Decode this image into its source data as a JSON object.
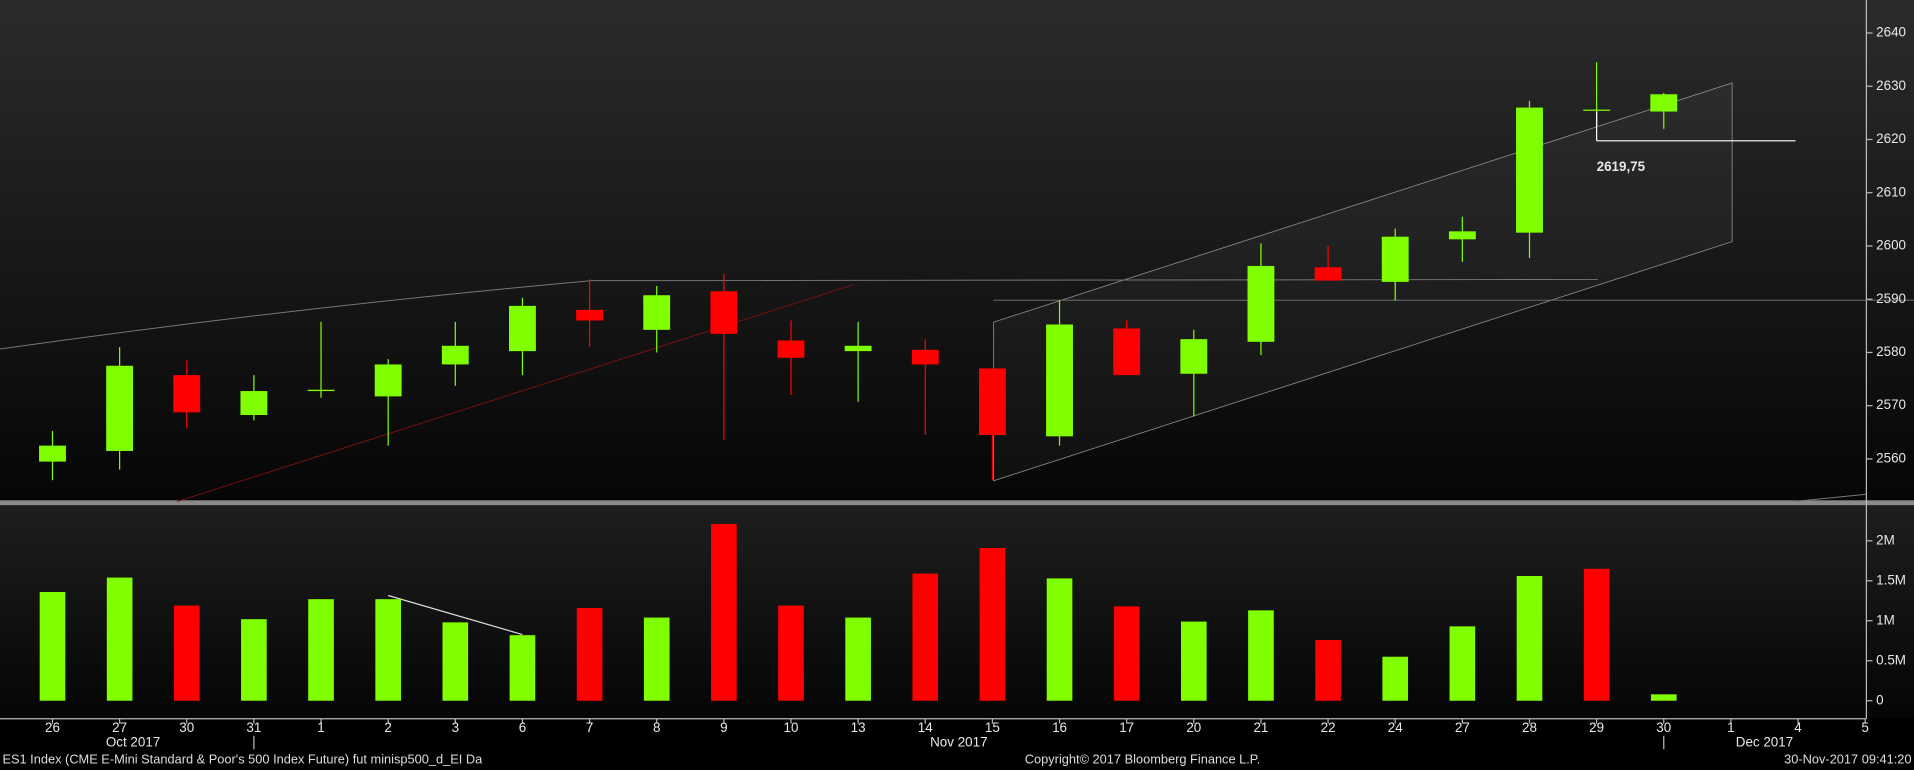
{
  "chart_data": [
    {
      "type": "candlestick",
      "categories": [
        "26",
        "27",
        "30",
        "31",
        "1",
        "2",
        "3",
        "6",
        "7",
        "8",
        "9",
        "10",
        "13",
        "14",
        "15",
        "16",
        "17",
        "20",
        "21",
        "22",
        "24",
        "27",
        "28",
        "29",
        "30",
        "1",
        "4",
        "5"
      ],
      "x_groups": [
        "Oct 2017",
        "Nov 2017",
        "Dec 2017"
      ],
      "open": [
        2559.5,
        2561.5,
        2575.75,
        2568.25,
        2572.75,
        2571.75,
        2577.75,
        2580.25,
        2588,
        2584.25,
        2591.5,
        2582.25,
        2580.25,
        2580.5,
        2577,
        2564.25,
        2584.5,
        2576,
        2582,
        2596,
        2593.25,
        2601.25,
        2602.5,
        2625.5,
        2625.25,
        null,
        null,
        null
      ],
      "high": [
        2565.25,
        2581,
        2578.5,
        2575.75,
        2585.75,
        2578.75,
        2585.75,
        2590.25,
        2593.75,
        2592.5,
        2594.75,
        2586,
        2585.75,
        2582.5,
        2577,
        2589.75,
        2586,
        2584.25,
        2600.5,
        2600,
        2603.25,
        2605.5,
        2627.25,
        2634.5,
        2628.75,
        null,
        null,
        null
      ],
      "low": [
        2556,
        2558,
        2565.75,
        2567.25,
        2571.5,
        2562.5,
        2573.75,
        2575.75,
        2581,
        2580,
        2563.5,
        2572,
        2570.75,
        2564.5,
        2556,
        2562.5,
        2575.75,
        2568,
        2579.5,
        2593.5,
        2589.75,
        2597,
        2597.75,
        2622.5,
        2622,
        null,
        null,
        null
      ],
      "close": [
        2562.5,
        2577.5,
        2568.75,
        2572.75,
        2573,
        2577.75,
        2581.25,
        2588.75,
        2586,
        2590.75,
        2583.5,
        2579,
        2581.25,
        2577.75,
        2564.5,
        2585.25,
        2575.75,
        2582.5,
        2596.25,
        2593.5,
        2601.75,
        2602.75,
        2626,
        2625.5,
        2628.5,
        null,
        null,
        null
      ],
      "up_color": "#80ff00",
      "down_color": "#ff0000",
      "ylim": [
        2552,
        2646.2
      ],
      "yticks": [
        2560,
        2570,
        2580,
        2590,
        2600,
        2610,
        2620,
        2630,
        2640
      ],
      "annotation": {
        "value": 2619.75,
        "label": "2619,75"
      },
      "footer": {
        "left": "ES1 Index (CME E-Mini Standard & Poor's 500 Index Future) fut minisp500_d_EI  Da",
        "center": "Copyright© 2017 Bloomberg Finance L.P.",
        "right": "30-Nov-2017 09:41:20"
      }
    },
    {
      "type": "bar",
      "values": [
        1360000,
        1540000,
        1190000,
        1020000,
        1270000,
        1270000,
        980000,
        820000,
        1160000,
        1040000,
        2210000,
        1190000,
        1040000,
        1590000,
        1910000,
        1530000,
        1180000,
        990000,
        1130000,
        760000,
        550000,
        930000,
        1560000,
        1650000,
        80000,
        null,
        null,
        null
      ],
      "colors": [
        "#80ff00",
        "#80ff00",
        "#ff0000",
        "#80ff00",
        "#80ff00",
        "#80ff00",
        "#80ff00",
        "#80ff00",
        "#ff0000",
        "#80ff00",
        "#ff0000",
        "#ff0000",
        "#80ff00",
        "#ff0000",
        "#ff0000",
        "#80ff00",
        "#ff0000",
        "#80ff00",
        "#80ff00",
        "#ff0000",
        "#80ff00",
        "#80ff00",
        "#80ff00",
        "#ff0000",
        "#80ff00",
        null,
        null,
        null
      ],
      "ylim": [
        -210000,
        2430000
      ],
      "yticks": [
        0,
        {
          "value": 500000,
          "label": "0.5M"
        },
        {
          "value": 1000000,
          "label": "1M"
        },
        {
          "value": 1500000,
          "label": "1.5M"
        },
        {
          "value": 2000000,
          "label": "2M"
        }
      ]
    }
  ]
}
